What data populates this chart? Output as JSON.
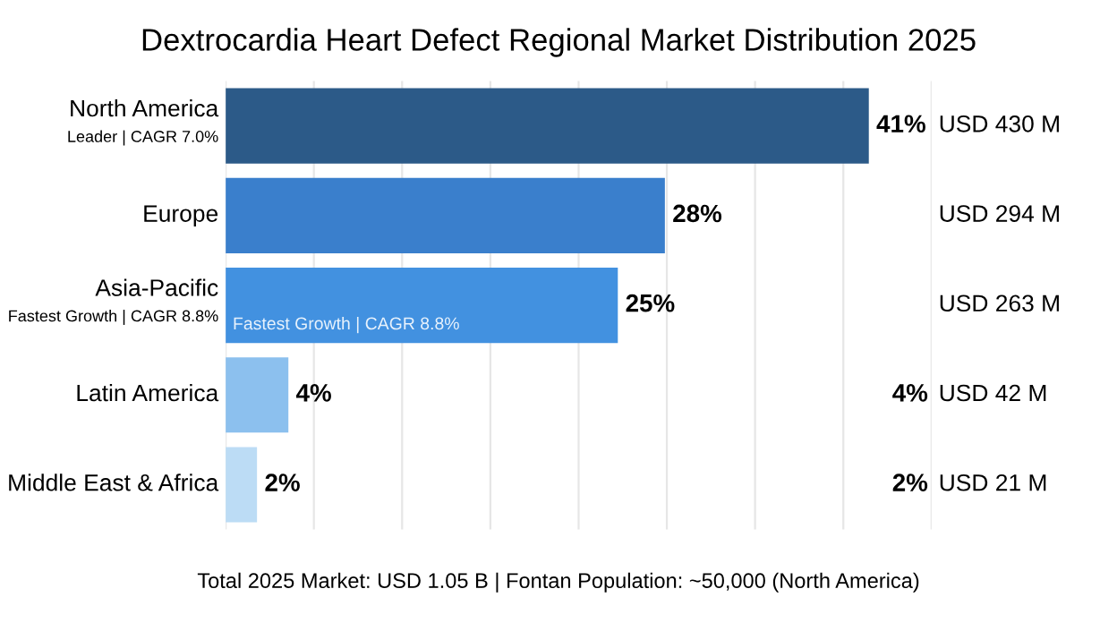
{
  "chart_data": {
    "type": "bar",
    "orientation": "horizontal",
    "title": "Dextrocardia Heart Defect Regional Market Distribution 2025",
    "categories": [
      "North America\nLeader | CAGR 7.0%",
      "Europe",
      "Asia-Pacific\nFastest Growth | CAGR 8.8%",
      "Latin America",
      "Middle East & Africa"
    ],
    "values": [
      41,
      28,
      25,
      4,
      2
    ],
    "colors": [
      "#2c5a88",
      "#3a7fcc",
      "#4291e0",
      "#8cc0ee",
      "#bcdcf5"
    ],
    "value_labels": [
      "41%",
      "28%",
      "25%",
      "4%",
      "2%"
    ],
    "xlim": [
      0,
      45
    ],
    "xticks": [
      {
        "value": 0,
        "label": null
      },
      {
        "value": 5.625,
        "label": null
      },
      {
        "value": 11.25,
        "label": null
      },
      {
        "value": 16.875,
        "label": null
      },
      {
        "value": 22.5,
        "label": null
      },
      {
        "value": 28.125,
        "label": null
      },
      {
        "value": 33.75,
        "label": null
      },
      {
        "value": 39.375,
        "label": null
      },
      {
        "value": 45,
        "label": null
      }
    ],
    "grid": "x",
    "annotations": [
      "USD 430 M",
      "USD 294 M",
      "USD 263 M",
      "USD 42 M",
      "USD 21 M",
      "4%",
      "2%",
      "Fastest Growth | CAGR 8.8%",
      "Total 2025 Market: USD 1.05 B | Fontan Population: ~50,000 (North America)"
    ]
  }
}
